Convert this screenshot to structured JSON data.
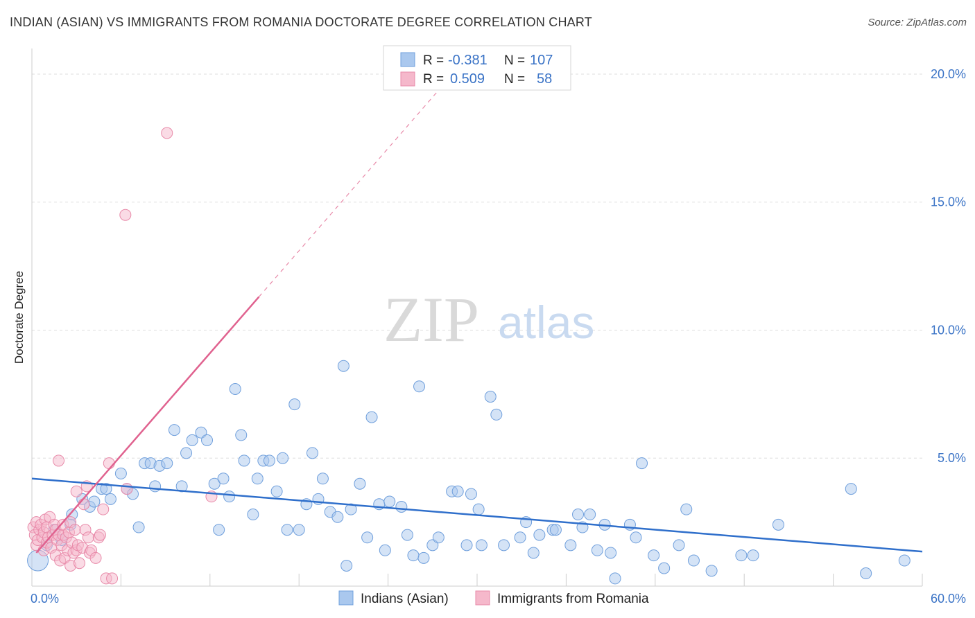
{
  "header": {
    "title": "INDIAN (ASIAN) VS IMMIGRANTS FROM ROMANIA DOCTORATE DEGREE CORRELATION CHART",
    "source": "Source: ZipAtlas.com"
  },
  "watermark": {
    "zip": "ZIP",
    "atlas": "atlas"
  },
  "colors": {
    "blue_fill": "#aac8ee",
    "blue_stroke": "#6f9fdc",
    "blue_line": "#2f6fcb",
    "pink_fill": "#f5b8cb",
    "pink_stroke": "#e88aa9",
    "pink_line": "#e0628f",
    "grid": "#dddddd",
    "label": "#3a73c6"
  },
  "legend": {
    "rows": [
      {
        "r_label": "R =",
        "r_value": "-0.381",
        "n_label": "N =",
        "n_value": "107"
      },
      {
        "r_label": "R =",
        "r_value": "0.509",
        "n_label": "N =",
        "n_value": "58"
      }
    ]
  },
  "chart_data": {
    "type": "scatter",
    "title": "INDIAN (ASIAN) VS IMMIGRANTS FROM ROMANIA DOCTORATE DEGREE CORRELATION CHART",
    "xlabel": "",
    "ylabel": "Doctorate Degree",
    "xlim": [
      0,
      60
    ],
    "ylim": [
      0,
      21
    ],
    "x_tick_labels": [
      "0.0%",
      "60.0%"
    ],
    "y_ticks": [
      5,
      10,
      15,
      20
    ],
    "y_tick_labels": [
      "5.0%",
      "10.0%",
      "15.0%",
      "20.0%"
    ],
    "legend_position": "bottom",
    "series": [
      {
        "name": "Indians (Asian)",
        "r": -0.381,
        "n": 107,
        "trend": {
          "x": [
            0,
            60
          ],
          "y": [
            4.2,
            1.35
          ],
          "style": "solid"
        },
        "points": [
          [
            0.4,
            1.0
          ],
          [
            1.0,
            1.6
          ],
          [
            1.5,
            2.2
          ],
          [
            2.0,
            1.8
          ],
          [
            2.6,
            2.4
          ],
          [
            2.7,
            2.8
          ],
          [
            3.4,
            3.4
          ],
          [
            3.9,
            3.1
          ],
          [
            4.2,
            3.3
          ],
          [
            4.7,
            3.8
          ],
          [
            5.0,
            3.8
          ],
          [
            5.3,
            3.4
          ],
          [
            6.0,
            4.4
          ],
          [
            6.4,
            3.8
          ],
          [
            6.8,
            3.6
          ],
          [
            7.2,
            2.3
          ],
          [
            7.6,
            4.8
          ],
          [
            8.0,
            4.8
          ],
          [
            8.3,
            3.9
          ],
          [
            8.6,
            4.7
          ],
          [
            9.1,
            4.8
          ],
          [
            9.6,
            6.1
          ],
          [
            10.1,
            3.9
          ],
          [
            10.4,
            5.2
          ],
          [
            10.8,
            5.7
          ],
          [
            11.4,
            6.0
          ],
          [
            11.8,
            5.7
          ],
          [
            12.3,
            4.0
          ],
          [
            12.6,
            2.2
          ],
          [
            12.9,
            4.2
          ],
          [
            13.3,
            3.5
          ],
          [
            13.7,
            7.7
          ],
          [
            14.1,
            5.9
          ],
          [
            14.3,
            4.9
          ],
          [
            14.9,
            2.8
          ],
          [
            15.2,
            4.2
          ],
          [
            15.6,
            4.9
          ],
          [
            16.0,
            4.9
          ],
          [
            16.5,
            3.7
          ],
          [
            16.9,
            5.0
          ],
          [
            17.2,
            2.2
          ],
          [
            17.7,
            7.1
          ],
          [
            18.0,
            2.2
          ],
          [
            18.5,
            3.2
          ],
          [
            18.9,
            5.2
          ],
          [
            19.3,
            3.4
          ],
          [
            19.6,
            4.2
          ],
          [
            20.1,
            2.9
          ],
          [
            20.6,
            2.7
          ],
          [
            21.0,
            8.6
          ],
          [
            21.2,
            0.8
          ],
          [
            21.5,
            3.0
          ],
          [
            22.1,
            4.0
          ],
          [
            22.6,
            1.9
          ],
          [
            22.9,
            6.6
          ],
          [
            23.4,
            3.2
          ],
          [
            23.8,
            1.4
          ],
          [
            24.1,
            3.3
          ],
          [
            24.9,
            3.1
          ],
          [
            25.3,
            2.0
          ],
          [
            25.7,
            1.2
          ],
          [
            26.1,
            7.8
          ],
          [
            26.4,
            1.1
          ],
          [
            27.0,
            1.6
          ],
          [
            27.4,
            1.9
          ],
          [
            28.3,
            3.7
          ],
          [
            28.7,
            3.7
          ],
          [
            29.3,
            1.6
          ],
          [
            29.6,
            3.6
          ],
          [
            30.1,
            3.0
          ],
          [
            30.3,
            1.6
          ],
          [
            30.9,
            7.4
          ],
          [
            31.3,
            6.7
          ],
          [
            31.8,
            1.6
          ],
          [
            32.9,
            1.9
          ],
          [
            33.3,
            2.5
          ],
          [
            33.8,
            1.3
          ],
          [
            34.2,
            2.0
          ],
          [
            35.1,
            2.2
          ],
          [
            35.3,
            2.2
          ],
          [
            36.3,
            1.6
          ],
          [
            36.8,
            2.8
          ],
          [
            37.1,
            2.3
          ],
          [
            37.6,
            2.8
          ],
          [
            38.1,
            1.4
          ],
          [
            38.6,
            2.4
          ],
          [
            39.0,
            1.3
          ],
          [
            39.3,
            0.3
          ],
          [
            40.3,
            2.4
          ],
          [
            40.7,
            1.9
          ],
          [
            41.1,
            4.8
          ],
          [
            41.9,
            1.2
          ],
          [
            42.6,
            0.7
          ],
          [
            43.6,
            1.6
          ],
          [
            44.1,
            3.0
          ],
          [
            44.6,
            1.0
          ],
          [
            45.8,
            0.6
          ],
          [
            47.8,
            1.2
          ],
          [
            48.6,
            1.2
          ],
          [
            50.3,
            2.4
          ],
          [
            55.2,
            3.8
          ],
          [
            56.2,
            0.5
          ],
          [
            58.8,
            1.0
          ]
        ]
      },
      {
        "name": "Immigrants from Romania",
        "r": 0.509,
        "n": 58,
        "trend": {
          "x": [
            0.3,
            15.3
          ],
          "y": [
            1.3,
            11.3
          ],
          "style": "solid",
          "extension": {
            "x": [
              15.3,
              27.3
            ],
            "y": [
              11.3,
              19.3
            ],
            "style": "dashed"
          }
        },
        "points": [
          [
            0.1,
            2.3
          ],
          [
            0.2,
            2.0
          ],
          [
            0.3,
            1.6
          ],
          [
            0.3,
            2.5
          ],
          [
            0.4,
            1.8
          ],
          [
            0.5,
            2.2
          ],
          [
            0.6,
            2.4
          ],
          [
            0.7,
            1.9
          ],
          [
            0.8,
            1.4
          ],
          [
            0.8,
            2.1
          ],
          [
            0.9,
            2.6
          ],
          [
            1.0,
            1.7
          ],
          [
            1.0,
            2.3
          ],
          [
            1.1,
            1.9
          ],
          [
            1.2,
            2.7
          ],
          [
            1.3,
            1.5
          ],
          [
            1.4,
            2.0
          ],
          [
            1.5,
            2.4
          ],
          [
            1.6,
            1.2
          ],
          [
            1.6,
            2.2
          ],
          [
            1.7,
            1.8
          ],
          [
            1.8,
            2.0
          ],
          [
            1.8,
            4.9
          ],
          [
            1.9,
            1.0
          ],
          [
            2.0,
            1.6
          ],
          [
            2.1,
            2.0
          ],
          [
            2.1,
            2.4
          ],
          [
            2.2,
            1.1
          ],
          [
            2.3,
            1.9
          ],
          [
            2.4,
            1.4
          ],
          [
            2.5,
            2.1
          ],
          [
            2.6,
            0.8
          ],
          [
            2.6,
            2.5
          ],
          [
            2.7,
            1.7
          ],
          [
            2.8,
            1.3
          ],
          [
            2.9,
            2.2
          ],
          [
            3.0,
            1.4
          ],
          [
            3.0,
            3.7
          ],
          [
            3.1,
            1.6
          ],
          [
            3.2,
            0.9
          ],
          [
            3.4,
            1.5
          ],
          [
            3.5,
            3.2
          ],
          [
            3.6,
            2.2
          ],
          [
            3.7,
            3.9
          ],
          [
            3.8,
            1.9
          ],
          [
            3.9,
            1.3
          ],
          [
            4.0,
            1.4
          ],
          [
            4.3,
            1.1
          ],
          [
            4.5,
            1.9
          ],
          [
            4.6,
            2.0
          ],
          [
            4.8,
            3.0
          ],
          [
            5.0,
            0.3
          ],
          [
            5.2,
            4.8
          ],
          [
            5.4,
            0.3
          ],
          [
            6.3,
            14.5
          ],
          [
            6.4,
            3.8
          ],
          [
            9.1,
            17.7
          ],
          [
            12.1,
            3.5
          ]
        ]
      }
    ]
  }
}
